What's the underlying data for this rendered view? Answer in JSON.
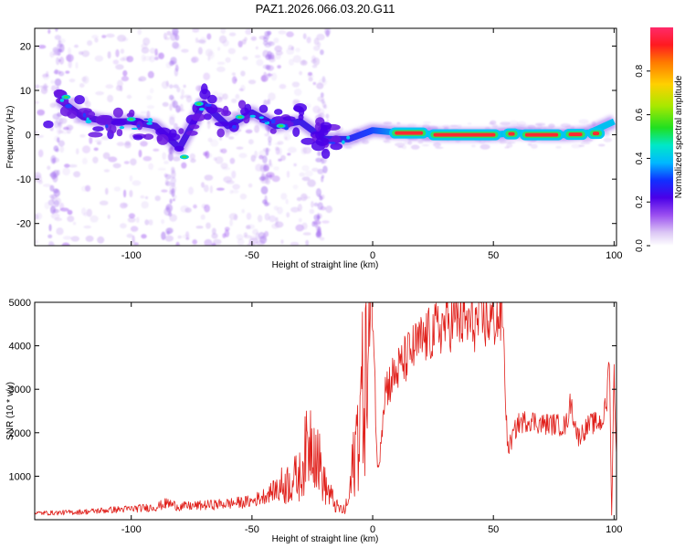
{
  "page_title": "PAZ1.2026.066.03.20.G11",
  "chart_data": [
    {
      "type": "heatmap",
      "title": "PAZ1.2026.066.03.20.G11",
      "xlabel": "Height of straight line (km)",
      "ylabel": "Frequency (Hz)",
      "xlim": [
        -140,
        101
      ],
      "ylim": [
        -25,
        24
      ],
      "xticks": [
        -100,
        -50,
        0,
        50,
        100
      ],
      "yticks": [
        -20,
        -10,
        0,
        10,
        20
      ],
      "x_tick_labels": [
        "-100",
        "-50",
        "0",
        "50",
        "100"
      ],
      "y_tick_labels": [
        "-20",
        "-10",
        "0",
        "10",
        "20"
      ],
      "colorbar": {
        "label": "Normalized spectral amplitude",
        "range": [
          0,
          1
        ],
        "ticks": [
          0.0,
          0.2,
          0.4,
          0.6,
          0.8
        ],
        "tick_labels": [
          "0.0",
          "0.2",
          "0.4",
          "0.6",
          "0.8"
        ]
      },
      "ridge": [
        {
          "x": -130,
          "freq": 8,
          "amp": 0.3
        },
        {
          "x": -120,
          "freq": 4,
          "amp": 0.3
        },
        {
          "x": -110,
          "freq": 3,
          "amp": 0.25
        },
        {
          "x": -100,
          "freq": 3,
          "amp": 0.3
        },
        {
          "x": -90,
          "freq": 2,
          "amp": 0.25
        },
        {
          "x": -80,
          "freq": -3,
          "amp": 0.3
        },
        {
          "x": -70,
          "freq": 7,
          "amp": 0.3
        },
        {
          "x": -60,
          "freq": 2,
          "amp": 0.25
        },
        {
          "x": -50,
          "freq": 5,
          "amp": 0.25
        },
        {
          "x": -40,
          "freq": 2,
          "amp": 0.25
        },
        {
          "x": -30,
          "freq": 3,
          "amp": 0.25
        },
        {
          "x": -20,
          "freq": -1,
          "amp": 0.3
        },
        {
          "x": -10,
          "freq": -1,
          "amp": 0.4
        },
        {
          "x": 0,
          "freq": 1,
          "amp": 0.5
        },
        {
          "x": 10,
          "freq": 0.5,
          "amp": 0.7
        },
        {
          "x": 20,
          "freq": 0.3,
          "amp": 0.8
        },
        {
          "x": 30,
          "freq": 0,
          "amp": 0.9
        },
        {
          "x": 40,
          "freq": 0,
          "amp": 1.0
        },
        {
          "x": 50,
          "freq": 0,
          "amp": 0.95
        },
        {
          "x": 60,
          "freq": 0.5,
          "amp": 0.7
        },
        {
          "x": 70,
          "freq": 0,
          "amp": 0.8
        },
        {
          "x": 80,
          "freq": 0,
          "amp": 0.7
        },
        {
          "x": 90,
          "freq": 0.5,
          "amp": 0.5
        },
        {
          "x": 100,
          "freq": 3,
          "amp": 0.4
        }
      ]
    },
    {
      "type": "line",
      "xlabel": "Height of straight line (km)",
      "ylabel": "SNR (10 * v/v)",
      "xlim": [
        -140,
        101
      ],
      "ylim": [
        0,
        5000
      ],
      "xticks": [
        -100,
        -50,
        0,
        50,
        100
      ],
      "yticks": [
        1000,
        2000,
        3000,
        4000,
        5000
      ],
      "x_tick_labels": [
        "-100",
        "-50",
        "0",
        "50",
        "100"
      ],
      "y_tick_labels": [
        "1000",
        "2000",
        "3000",
        "4000",
        "5000"
      ],
      "color": "#e0201b",
      "series": [
        {
          "name": "SNR",
          "x": [
            -140,
            -130,
            -120,
            -110,
            -100,
            -90,
            -85,
            -80,
            -70,
            -60,
            -50,
            -45,
            -40,
            -35,
            -30,
            -28,
            -25,
            -20,
            -15,
            -12,
            -10,
            -5,
            -2,
            0,
            2,
            5,
            10,
            15,
            20,
            25,
            30,
            35,
            40,
            45,
            50,
            54,
            55,
            56,
            60,
            65,
            70,
            75,
            80,
            82,
            85,
            90,
            95,
            97,
            98,
            99,
            100,
            101
          ],
          "y": [
            150,
            160,
            180,
            220,
            250,
            290,
            380,
            300,
            330,
            370,
            420,
            550,
            700,
            850,
            1000,
            1500,
            2000,
            800,
            300,
            200,
            400,
            2600,
            3500,
            5100,
            1000,
            3000,
            3400,
            3800,
            4100,
            4300,
            4500,
            4600,
            4500,
            4550,
            4600,
            4650,
            2800,
            1600,
            2200,
            2300,
            2200,
            2200,
            2150,
            2700,
            1900,
            2200,
            2250,
            2700,
            3900,
            100,
            3400,
            1500
          ]
        }
      ]
    }
  ]
}
